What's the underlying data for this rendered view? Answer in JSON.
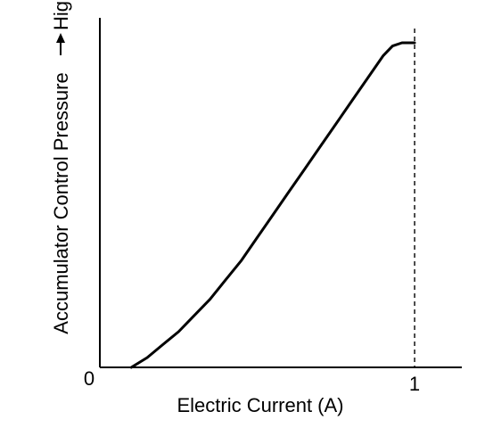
{
  "chart_data": {
    "type": "line",
    "title": "",
    "xlabel": "Electric Current (A)",
    "ylabel": "Accumulator Control Pressure",
    "y_direction_label": "High",
    "x_ticks": [
      "0",
      "1"
    ],
    "xlim": [
      0,
      1.15
    ],
    "ylim": [
      0,
      1.0
    ],
    "grid": false,
    "legend": "none",
    "line_color": "#000000",
    "series": [
      {
        "x": [
          0.1,
          0.15,
          0.2,
          0.25,
          0.3,
          0.35,
          0.4,
          0.45,
          0.5,
          0.55,
          0.6,
          0.65,
          0.7,
          0.75,
          0.8,
          0.85,
          0.9,
          0.93,
          0.96,
          1.0
        ],
        "y": [
          0.0,
          0.03,
          0.07,
          0.11,
          0.16,
          0.21,
          0.27,
          0.33,
          0.4,
          0.47,
          0.54,
          0.61,
          0.68,
          0.75,
          0.82,
          0.89,
          0.96,
          0.99,
          1.0,
          1.0
        ]
      }
    ],
    "reference_lines": [
      {
        "axis": "x",
        "value": 1.0,
        "style": "dashed"
      }
    ]
  }
}
